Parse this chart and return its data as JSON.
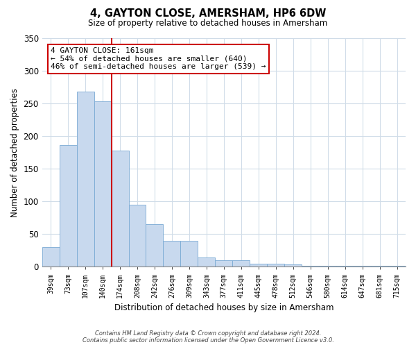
{
  "title": "4, GAYTON CLOSE, AMERSHAM, HP6 6DW",
  "subtitle": "Size of property relative to detached houses in Amersham",
  "xlabel": "Distribution of detached houses by size in Amersham",
  "ylabel": "Number of detached properties",
  "bar_labels": [
    "39sqm",
    "73sqm",
    "107sqm",
    "140sqm",
    "174sqm",
    "208sqm",
    "242sqm",
    "276sqm",
    "309sqm",
    "343sqm",
    "377sqm",
    "411sqm",
    "445sqm",
    "478sqm",
    "512sqm",
    "546sqm",
    "580sqm",
    "614sqm",
    "647sqm",
    "681sqm",
    "715sqm"
  ],
  "bar_values": [
    30,
    186,
    268,
    253,
    178,
    95,
    65,
    40,
    40,
    14,
    10,
    10,
    5,
    5,
    4,
    2,
    2,
    1,
    1,
    1,
    2
  ],
  "bar_color": "#c8d9ee",
  "bar_edge_color": "#7aaad4",
  "highlight_line_after_index": 3,
  "highlight_color": "#cc0000",
  "annotation_title": "4 GAYTON CLOSE: 161sqm",
  "annotation_line1": "← 54% of detached houses are smaller (640)",
  "annotation_line2": "46% of semi-detached houses are larger (539) →",
  "annotation_box_color": "#ffffff",
  "annotation_box_edge": "#cc0000",
  "ylim": [
    0,
    350
  ],
  "yticks": [
    0,
    50,
    100,
    150,
    200,
    250,
    300,
    350
  ],
  "footer_line1": "Contains HM Land Registry data © Crown copyright and database right 2024.",
  "footer_line2": "Contains public sector information licensed under the Open Government Licence v3.0.",
  "background_color": "#ffffff",
  "grid_color": "#d0dce8"
}
